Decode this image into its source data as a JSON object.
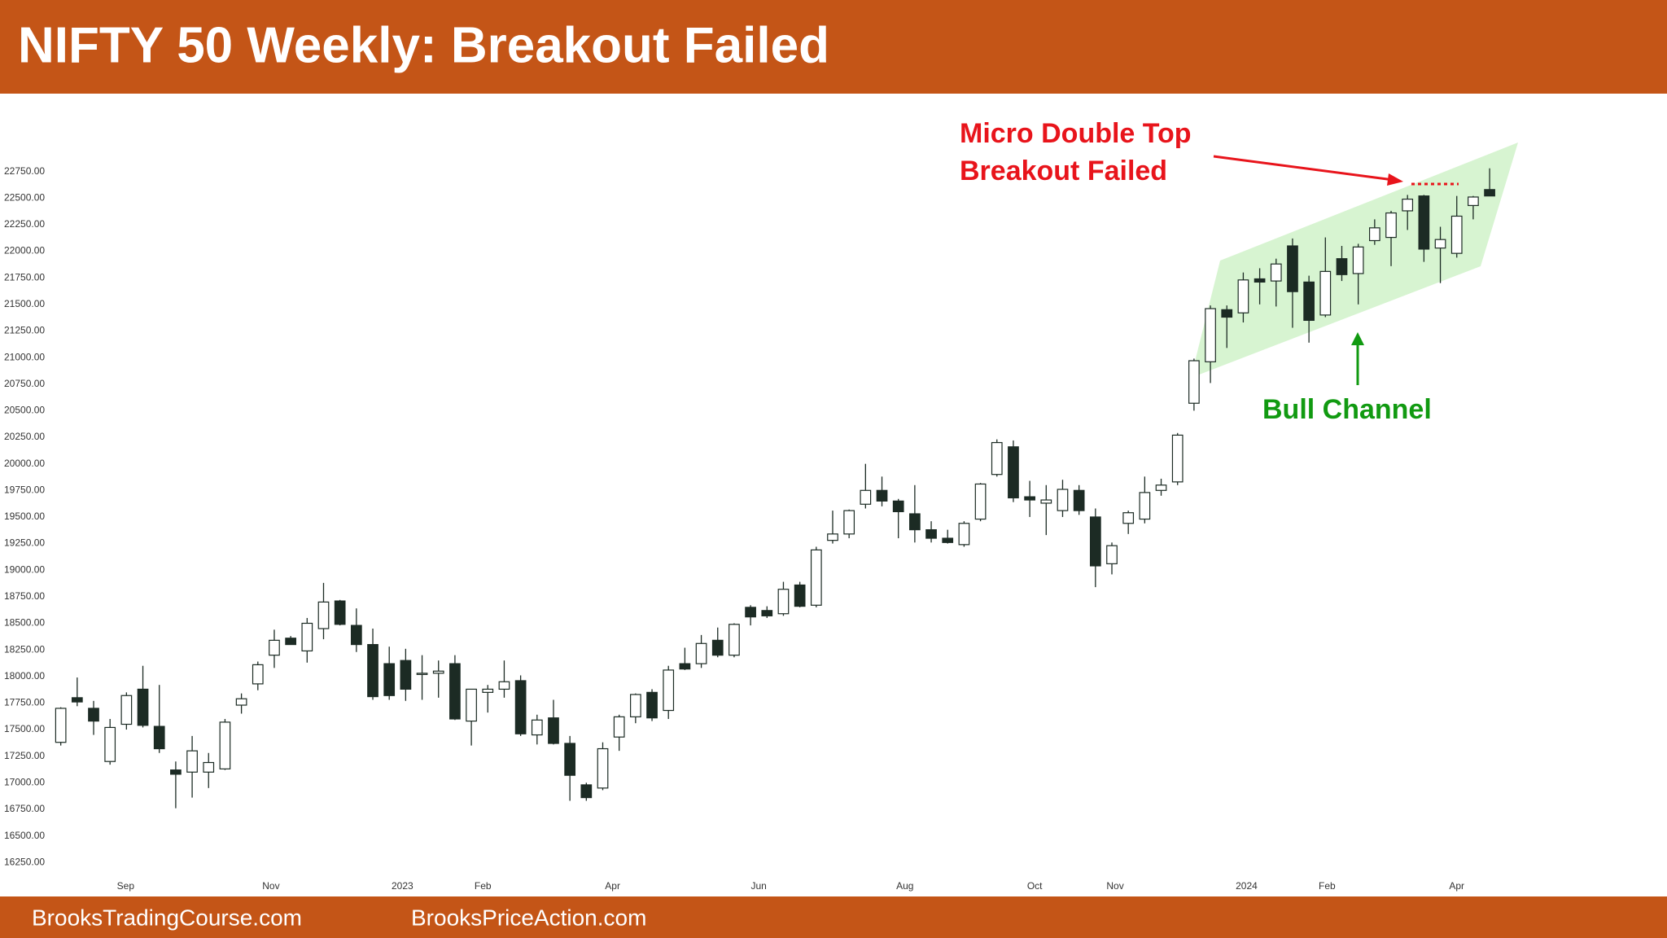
{
  "header": {
    "title": "NIFTY 50 Weekly: Breakout Failed"
  },
  "footer": [
    "BrooksTradingCourse.com",
    "BrooksPriceAction.com"
  ],
  "chart_data": {
    "type": "candlestick",
    "up_color": "#ffffff",
    "down_color": "#1c2b24",
    "edge_color": "#1c2b24",
    "open": [
      17380,
      17800,
      17700,
      17200,
      17550,
      17880,
      17530,
      17120,
      17100,
      17100,
      17130,
      17730,
      17930,
      18200,
      18360,
      18240,
      18450,
      18710,
      18480,
      18300,
      18120,
      18150,
      18020,
      18030,
      18120,
      17580,
      17850,
      17880,
      17960,
      17450,
      17610,
      17370,
      16980,
      16950,
      17430,
      17620,
      17850,
      17680,
      18120,
      18120,
      18340,
      18200,
      18650,
      18620,
      18590,
      18860,
      18670,
      19280,
      19340,
      19620,
      19750,
      19650,
      19530,
      19380,
      19300,
      19240,
      19480,
      19900,
      20160,
      19690,
      19630,
      19560,
      19750,
      19500,
      19060,
      19440,
      19480,
      19750,
      19830,
      20570,
      20960,
      21450,
      21420,
      21740,
      21720,
      22050,
      21710,
      21400,
      21930,
      21790,
      22100,
      22130,
      22380,
      22520,
      22030,
      21980,
      22430,
      22580
    ],
    "high": [
      17710,
      17990,
      17770,
      17600,
      17850,
      18100,
      17920,
      17200,
      17440,
      17280,
      17600,
      17840,
      18140,
      18440,
      18380,
      18550,
      18880,
      18720,
      18640,
      18450,
      18280,
      18260,
      18200,
      18150,
      18200,
      17870,
      17920,
      18150,
      18010,
      17640,
      17780,
      17440,
      17000,
      17380,
      17640,
      17840,
      17880,
      18100,
      18270,
      18390,
      18460,
      18500,
      18670,
      18660,
      18890,
      18890,
      19220,
      19560,
      19570,
      20000,
      19880,
      19670,
      19800,
      19460,
      19380,
      19460,
      19820,
      20230,
      20220,
      19840,
      19800,
      19850,
      19800,
      19580,
      19260,
      19560,
      19880,
      19860,
      20290,
      20990,
      21490,
      21490,
      21800,
      21840,
      21930,
      22120,
      21770,
      22130,
      22050,
      22070,
      22300,
      22380,
      22530,
      22530,
      22230,
      22520,
      22520,
      22780
    ],
    "low": [
      17350,
      17720,
      17450,
      17170,
      17500,
      17520,
      17280,
      16760,
      16860,
      16950,
      17120,
      17650,
      17870,
      18080,
      18300,
      18130,
      18350,
      18480,
      18230,
      17780,
      17780,
      17770,
      17780,
      17800,
      17590,
      17350,
      17660,
      17800,
      17440,
      17360,
      17360,
      16830,
      16830,
      16930,
      17300,
      17560,
      17580,
      17600,
      18060,
      18080,
      18180,
      18180,
      18480,
      18550,
      18570,
      18650,
      18650,
      19250,
      19300,
      19580,
      19600,
      19300,
      19260,
      19260,
      19250,
      19220,
      19460,
      19880,
      19640,
      19500,
      19330,
      19500,
      19520,
      18840,
      18960,
      19340,
      19440,
      19700,
      19800,
      20500,
      20760,
      21090,
      21330,
      21500,
      21480,
      21280,
      21140,
      21380,
      21720,
      21500,
      22060,
      21860,
      22200,
      21900,
      21700,
      21940,
      22300,
      22520
    ],
    "close": [
      17700,
      17760,
      17580,
      17520,
      17820,
      17540,
      17320,
      17080,
      17300,
      17190,
      17570,
      17790,
      18110,
      18340,
      18300,
      18500,
      18700,
      18490,
      18300,
      17810,
      17820,
      17880,
      18030,
      18050,
      17600,
      17880,
      17880,
      17950,
      17460,
      17590,
      17370,
      17070,
      16860,
      17320,
      17620,
      17830,
      17610,
      18060,
      18070,
      18310,
      18200,
      18490,
      18560,
      18570,
      18820,
      18660,
      19190,
      19340,
      19560,
      19750,
      19650,
      19550,
      19380,
      19300,
      19260,
      19440,
      19810,
      20200,
      19680,
      19660,
      19660,
      19760,
      19560,
      19040,
      19230,
      19540,
      19730,
      19800,
      20270,
      20970,
      21460,
      21380,
      21730,
      21710,
      21880,
      21620,
      21350,
      21810,
      21780,
      22040,
      22220,
      22360,
      22490,
      22020,
      22110,
      22330,
      22510,
      22520
    ],
    "xlim": [
      -3.7,
      97.8
    ],
    "xticks": [
      {
        "value": 3.95,
        "label": "Sep"
      },
      {
        "value": 12.8,
        "label": "Nov"
      },
      {
        "value": 20.8,
        "label": "2023"
      },
      {
        "value": 25.7,
        "label": "Feb"
      },
      {
        "value": 33.6,
        "label": "Apr"
      },
      {
        "value": 42.5,
        "label": "Jun"
      },
      {
        "value": 51.4,
        "label": "Aug"
      },
      {
        "value": 59.3,
        "label": "Oct"
      },
      {
        "value": 64.2,
        "label": "Nov"
      },
      {
        "value": 72.2,
        "label": "2024"
      },
      {
        "value": 77.1,
        "label": "Feb"
      },
      {
        "value": 85.0,
        "label": "Apr"
      }
    ],
    "ylim": [
      15930,
      23360
    ],
    "yticks": [
      {
        "value": 22750,
        "label": "22750.00"
      },
      {
        "value": 22500,
        "label": "22500.00"
      },
      {
        "value": 22250,
        "label": "22250.00"
      },
      {
        "value": 22000,
        "label": "22000.00"
      },
      {
        "value": 21750,
        "label": "21750.00"
      },
      {
        "value": 21500,
        "label": "21500.00"
      },
      {
        "value": 21250,
        "label": "21250.00"
      },
      {
        "value": 21000,
        "label": "21000.00"
      },
      {
        "value": 20750,
        "label": "20750.00"
      },
      {
        "value": 20500,
        "label": "20500.00"
      },
      {
        "value": 20250,
        "label": "20250.00"
      },
      {
        "value": 20000,
        "label": "20000.00"
      },
      {
        "value": 19750,
        "label": "19750.00"
      },
      {
        "value": 19500,
        "label": "19500.00"
      },
      {
        "value": 19250,
        "label": "19250.00"
      },
      {
        "value": 19000,
        "label": "19000.00"
      },
      {
        "value": 18750,
        "label": "18750.00"
      },
      {
        "value": 18500,
        "label": "18500.00"
      },
      {
        "value": 18250,
        "label": "18250.00"
      },
      {
        "value": 18000,
        "label": "18000.00"
      },
      {
        "value": 17750,
        "label": "17750.00"
      },
      {
        "value": 17500,
        "label": "17500.00"
      },
      {
        "value": 17250,
        "label": "17250.00"
      },
      {
        "value": 17000,
        "label": "17000.00"
      },
      {
        "value": 16750,
        "label": "16750.00"
      },
      {
        "value": 16500,
        "label": "16500.00"
      },
      {
        "value": 16250,
        "label": "16250.00"
      }
    ],
    "annotations": [
      "Micro Double Top",
      "Breakout Failed",
      "Bull Channel"
    ]
  }
}
